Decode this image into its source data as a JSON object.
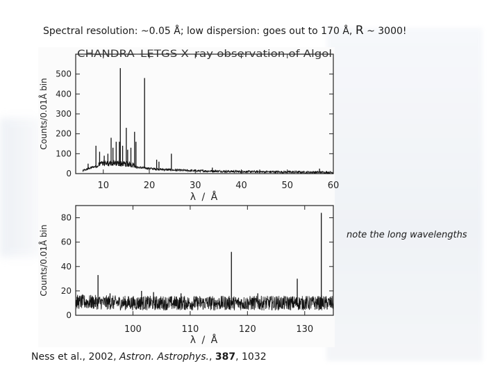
{
  "slide": {
    "title_prefix": "Spectral resolution: ~0.05 Å; low dispersion: goes out to 170 Å, ",
    "title_r": "R",
    "title_suffix": " ~ 3000!",
    "side_note": "note the long wavelengths",
    "citation": {
      "authors": "Ness et al., 2002, ",
      "journal": "Astron. Astrophys.",
      "sep": ", ",
      "volume": "387",
      "pages": ", 1032"
    }
  },
  "chart_data": [
    {
      "type": "line",
      "title": "CHANDRA–LETGS  X–ray  observation  of  Algol",
      "xlabel": "λ / Å",
      "ylabel": "Counts/0.01Å bin",
      "xlim": [
        4,
        60
      ],
      "ylim": [
        0,
        600
      ],
      "xticks": [
        "10",
        "20",
        "30",
        "40",
        "50",
        "60"
      ],
      "yticks": [
        "0",
        "100",
        "200",
        "300",
        "400",
        "500"
      ],
      "continuum": [
        [
          4,
          0
        ],
        [
          6,
          18
        ],
        [
          8,
          35
        ],
        [
          10,
          40
        ],
        [
          12,
          40
        ],
        [
          14,
          38
        ],
        [
          16,
          34
        ],
        [
          18,
          30
        ],
        [
          20,
          26
        ],
        [
          22,
          22
        ],
        [
          25,
          18
        ],
        [
          30,
          14
        ],
        [
          35,
          12
        ],
        [
          40,
          10
        ],
        [
          45,
          9
        ],
        [
          50,
          8
        ],
        [
          55,
          7
        ],
        [
          60,
          6
        ]
      ],
      "lines": [
        [
          6.7,
          50
        ],
        [
          8.4,
          140
        ],
        [
          9.2,
          110
        ],
        [
          10.2,
          90
        ],
        [
          11.0,
          100
        ],
        [
          11.7,
          180
        ],
        [
          12.1,
          130
        ],
        [
          12.8,
          160
        ],
        [
          13.5,
          160
        ],
        [
          13.7,
          530
        ],
        [
          14.2,
          140
        ],
        [
          15.0,
          230
        ],
        [
          15.3,
          120
        ],
        [
          16.0,
          130
        ],
        [
          16.8,
          210
        ],
        [
          17.1,
          160
        ],
        [
          18.97,
          480
        ],
        [
          21.6,
          70
        ],
        [
          22.1,
          60
        ],
        [
          24.8,
          100
        ],
        [
          33.7,
          30
        ],
        [
          40.3,
          15
        ],
        [
          44.0,
          20
        ],
        [
          50.5,
          15
        ],
        [
          57.0,
          25
        ]
      ]
    },
    {
      "type": "line",
      "title": "",
      "xlabel": "λ / Å",
      "ylabel": "Counts/0.01Å bin",
      "xlim": [
        90,
        135
      ],
      "ylim": [
        0,
        90
      ],
      "xticks": [
        "100",
        "110",
        "120",
        "130"
      ],
      "yticks": [
        "0",
        "20",
        "40",
        "60",
        "80"
      ],
      "continuum": [
        [
          90,
          11
        ],
        [
          100,
          10
        ],
        [
          110,
          10
        ],
        [
          120,
          10
        ],
        [
          130,
          10
        ],
        [
          135,
          10
        ]
      ],
      "lines": [
        [
          93.9,
          33
        ],
        [
          96.0,
          18
        ],
        [
          101.5,
          20
        ],
        [
          103.6,
          19
        ],
        [
          108.4,
          18
        ],
        [
          117.2,
          52
        ],
        [
          121.8,
          18
        ],
        [
          128.7,
          30
        ],
        [
          132.9,
          84
        ]
      ]
    }
  ]
}
